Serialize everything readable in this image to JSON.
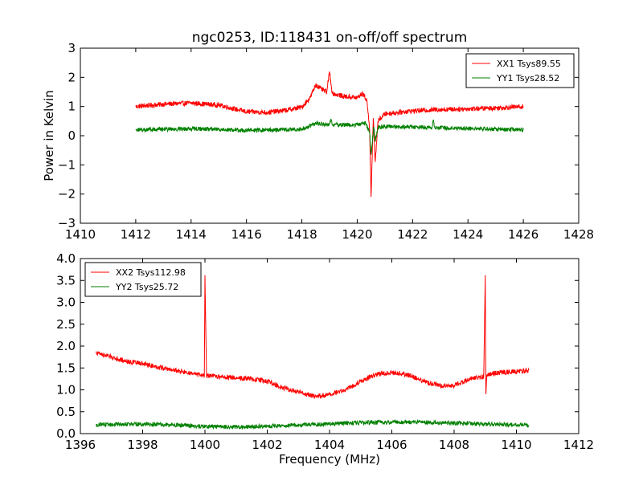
{
  "figure": {
    "title": "ngc0253, ID:118431 on-off/off spectrum",
    "ylabel": "Power in Kelvin",
    "xlabel": "Frequency (MHz)"
  },
  "chart_data": [
    {
      "type": "line",
      "title": "ngc0253, ID:118431 on-off/off spectrum",
      "xlabel": "",
      "ylabel": "Power in Kelvin",
      "xlim": [
        1410,
        1428
      ],
      "ylim": [
        -3,
        3
      ],
      "xticks": [
        "1410",
        "1412",
        "1414",
        "1416",
        "1418",
        "1420",
        "1422",
        "1424",
        "1426",
        "1428"
      ],
      "yticks": [
        "−3",
        "−2",
        "−1",
        "0",
        "1",
        "2",
        "3"
      ],
      "grid": false,
      "legend": "top-right",
      "series": [
        {
          "name": "XX1 Tsys89.55",
          "color": "#ff0000",
          "points": [
            [
              1412.0,
              1.0
            ],
            [
              1413.0,
              1.08
            ],
            [
              1414.0,
              1.12
            ],
            [
              1415.0,
              1.05
            ],
            [
              1416.0,
              0.82
            ],
            [
              1416.8,
              0.8
            ],
            [
              1417.5,
              0.88
            ],
            [
              1418.0,
              0.98
            ],
            [
              1418.3,
              1.3
            ],
            [
              1418.5,
              1.75
            ],
            [
              1418.7,
              1.6
            ],
            [
              1418.9,
              1.5
            ],
            [
              1419.0,
              2.2
            ],
            [
              1419.1,
              1.45
            ],
            [
              1419.5,
              1.35
            ],
            [
              1420.0,
              1.3
            ],
            [
              1420.2,
              1.45
            ],
            [
              1420.35,
              1.2
            ],
            [
              1420.45,
              0.2
            ],
            [
              1420.5,
              -2.1
            ],
            [
              1420.58,
              0.6
            ],
            [
              1420.65,
              -0.9
            ],
            [
              1420.75,
              0.5
            ],
            [
              1421.0,
              0.75
            ],
            [
              1422.0,
              0.85
            ],
            [
              1423.0,
              0.9
            ],
            [
              1424.0,
              0.92
            ],
            [
              1425.0,
              0.95
            ],
            [
              1426.0,
              1.0
            ]
          ]
        },
        {
          "name": "YY1 Tsys28.52",
          "color": "#008000",
          "points": [
            [
              1412.0,
              0.2
            ],
            [
              1413.0,
              0.22
            ],
            [
              1414.0,
              0.24
            ],
            [
              1415.0,
              0.22
            ],
            [
              1416.0,
              0.18
            ],
            [
              1417.0,
              0.2
            ],
            [
              1418.0,
              0.22
            ],
            [
              1418.5,
              0.42
            ],
            [
              1419.0,
              0.38
            ],
            [
              1419.05,
              0.58
            ],
            [
              1419.1,
              0.38
            ],
            [
              1420.0,
              0.37
            ],
            [
              1420.3,
              0.45
            ],
            [
              1420.45,
              0.1
            ],
            [
              1420.5,
              -0.65
            ],
            [
              1420.6,
              0.3
            ],
            [
              1420.65,
              -0.2
            ],
            [
              1420.75,
              0.28
            ],
            [
              1421.0,
              0.32
            ],
            [
              1422.0,
              0.3
            ],
            [
              1422.7,
              0.28
            ],
            [
              1422.75,
              0.55
            ],
            [
              1422.8,
              0.28
            ],
            [
              1424.0,
              0.25
            ],
            [
              1425.0,
              0.22
            ],
            [
              1426.0,
              0.2
            ]
          ]
        }
      ]
    },
    {
      "type": "line",
      "title": "",
      "xlabel": "Frequency (MHz)",
      "ylabel": "",
      "xlim": [
        1396,
        1412
      ],
      "ylim": [
        0.0,
        4.0
      ],
      "xticks": [
        "1396",
        "1398",
        "1400",
        "1402",
        "1404",
        "1406",
        "1408",
        "1410",
        "1412"
      ],
      "yticks": [
        "0.0",
        "0.5",
        "1.0",
        "1.5",
        "2.0",
        "2.5",
        "3.0",
        "3.5",
        "4.0"
      ],
      "grid": false,
      "legend": "top-left",
      "series": [
        {
          "name": "XX2 Tsys112.98",
          "color": "#ff0000",
          "points": [
            [
              1396.5,
              1.85
            ],
            [
              1397.0,
              1.75
            ],
            [
              1397.5,
              1.65
            ],
            [
              1398.0,
              1.6
            ],
            [
              1398.5,
              1.52
            ],
            [
              1399.0,
              1.45
            ],
            [
              1399.5,
              1.38
            ],
            [
              1399.98,
              1.32
            ],
            [
              1400.0,
              3.62
            ],
            [
              1400.05,
              1.32
            ],
            [
              1400.5,
              1.3
            ],
            [
              1401.0,
              1.28
            ],
            [
              1401.5,
              1.25
            ],
            [
              1402.0,
              1.2
            ],
            [
              1402.5,
              1.05
            ],
            [
              1403.0,
              0.95
            ],
            [
              1403.5,
              0.85
            ],
            [
              1404.0,
              0.88
            ],
            [
              1404.5,
              1.0
            ],
            [
              1405.0,
              1.2
            ],
            [
              1405.5,
              1.35
            ],
            [
              1406.0,
              1.4
            ],
            [
              1406.5,
              1.35
            ],
            [
              1407.0,
              1.2
            ],
            [
              1407.5,
              1.1
            ],
            [
              1408.0,
              1.1
            ],
            [
              1408.5,
              1.25
            ],
            [
              1408.95,
              1.3
            ],
            [
              1409.0,
              3.62
            ],
            [
              1409.02,
              0.9
            ],
            [
              1409.05,
              1.35
            ],
            [
              1409.5,
              1.4
            ],
            [
              1410.0,
              1.42
            ],
            [
              1410.4,
              1.45
            ]
          ]
        },
        {
          "name": "YY2 Tsys25.72",
          "color": "#008000",
          "points": [
            [
              1396.5,
              0.2
            ],
            [
              1397.0,
              0.21
            ],
            [
              1398.0,
              0.22
            ],
            [
              1399.0,
              0.2
            ],
            [
              1400.0,
              0.16
            ],
            [
              1401.0,
              0.15
            ],
            [
              1402.0,
              0.17
            ],
            [
              1403.0,
              0.2
            ],
            [
              1404.0,
              0.22
            ],
            [
              1405.0,
              0.25
            ],
            [
              1406.0,
              0.26
            ],
            [
              1407.0,
              0.26
            ],
            [
              1408.0,
              0.24
            ],
            [
              1409.0,
              0.22
            ],
            [
              1410.0,
              0.2
            ],
            [
              1410.4,
              0.19
            ]
          ]
        }
      ]
    }
  ]
}
